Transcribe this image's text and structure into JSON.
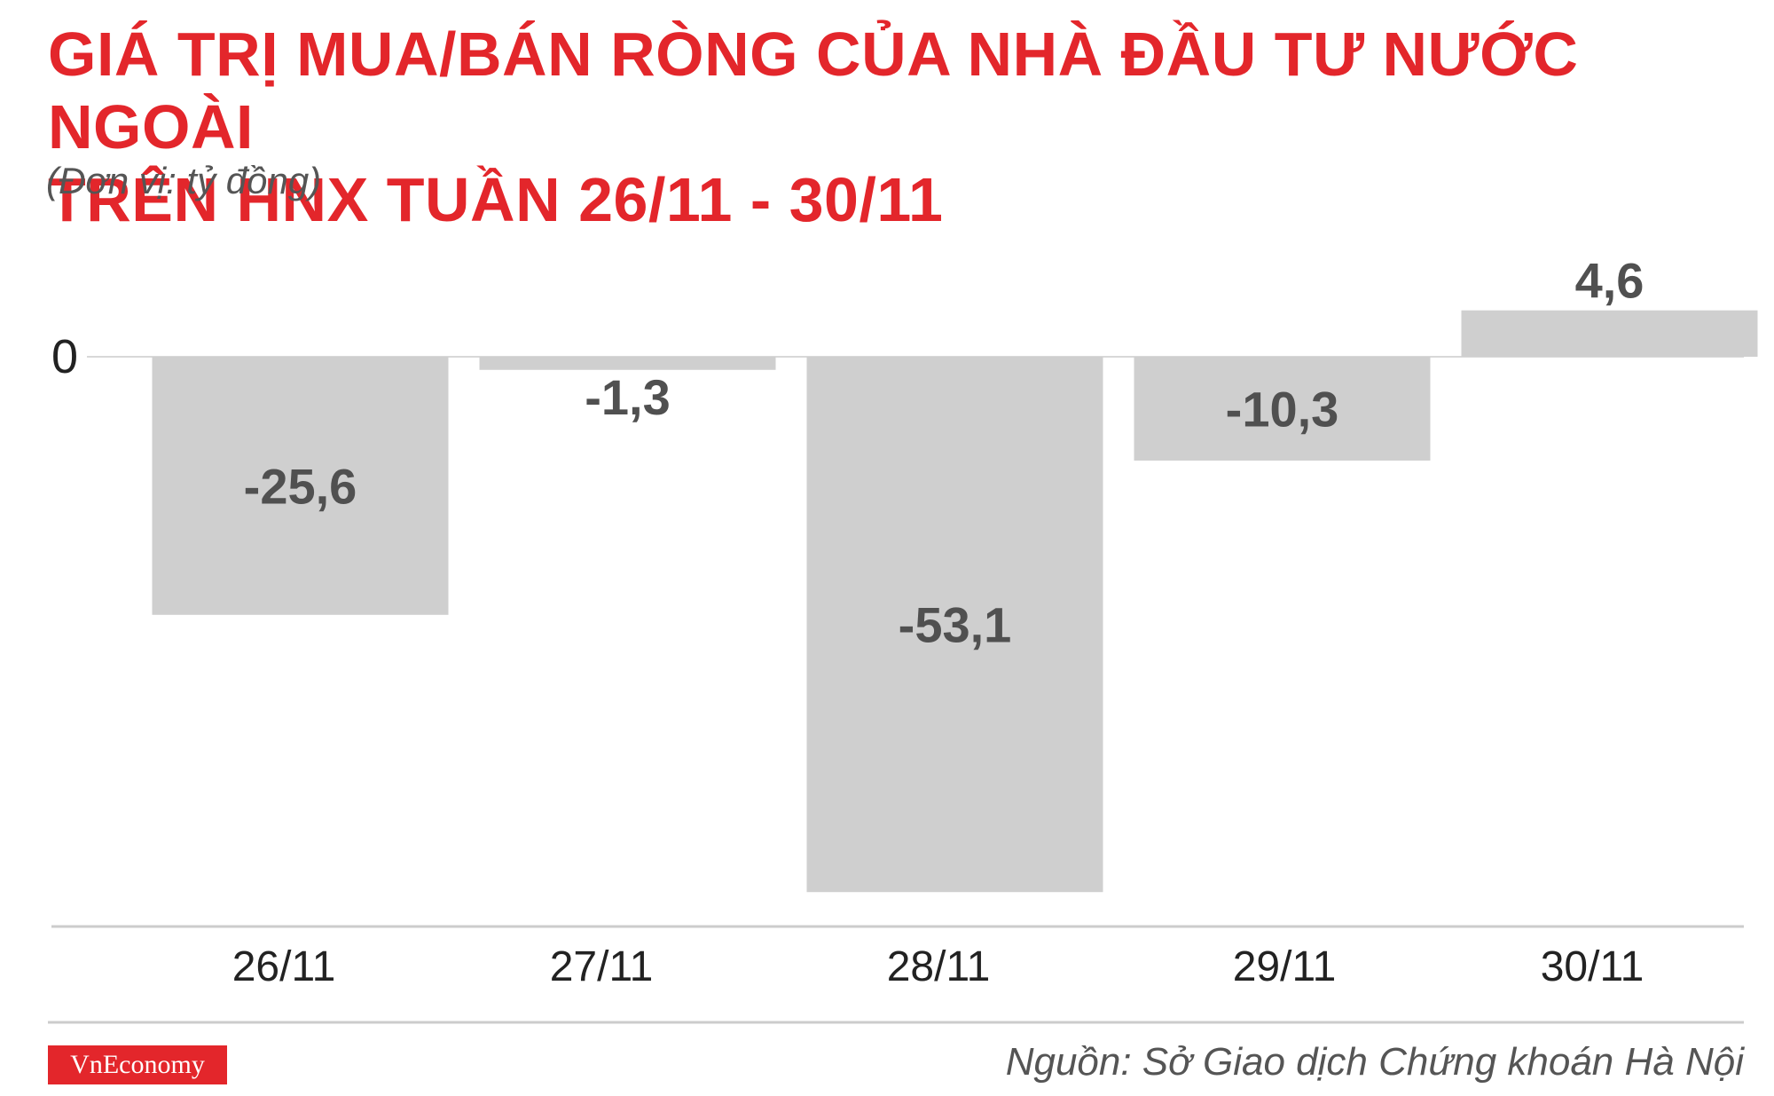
{
  "title_line1": "GIÁ TRỊ MUA/BÁN RÒNG CỦA NHÀ ĐẦU TƯ NƯỚC NGOÀI",
  "title_line2": "TRÊN HNX TUẦN 26/11 - 30/11",
  "unit": "(Đơn vị: tỷ đồng)",
  "logo": "VnEconomy",
  "source": "Nguồn: Sở Giao dịch Chứng khoán Hà Nội",
  "colors": {
    "title": "#e3262b",
    "bar": "#cfcfcf",
    "value_label": "#505050",
    "logo_bg": "#e3262b"
  },
  "chart_data": {
    "type": "bar",
    "categories": [
      "26/11",
      "27/11",
      "28/11",
      "29/11",
      "30/11"
    ],
    "values": [
      -25.6,
      -1.3,
      -53.1,
      -10.3,
      4.6
    ],
    "value_labels": [
      "-25,6",
      "-1,3",
      "-53,1",
      "-10,3",
      "4,6"
    ],
    "y_tick_labels": [
      "0"
    ],
    "ylim": [
      -57,
      5
    ],
    "grid": false
  }
}
